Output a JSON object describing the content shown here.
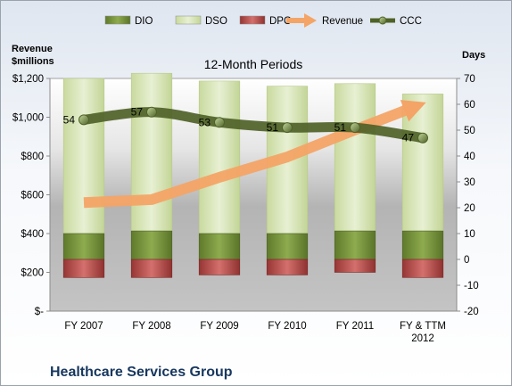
{
  "chart_data": {
    "type": "bar",
    "title": "12-Month Periods",
    "company": "Healthcare Services Group",
    "categories": [
      [
        "FY 2007"
      ],
      [
        "FY 2008"
      ],
      [
        "FY 2009"
      ],
      [
        "FY 2010"
      ],
      [
        "FY 2011"
      ],
      [
        "FY & TTM",
        "2012"
      ]
    ],
    "y_left": {
      "label_lines": [
        "Revenue",
        "$millions"
      ],
      "ticks": [
        "$-",
        "$200",
        "$400",
        "$600",
        "$800",
        "$1,000",
        "$1,200"
      ],
      "range": [
        0,
        1200
      ]
    },
    "y_right": {
      "label": "Days",
      "ticks": [
        "-20",
        "-10",
        "0",
        "10",
        "20",
        "30",
        "40",
        "50",
        "60",
        "70"
      ],
      "range": [
        -20,
        70
      ]
    },
    "legend": {
      "position": "top",
      "items": [
        "DIO",
        "DSO",
        "DPO",
        "Revenue",
        "CCC"
      ]
    },
    "series": [
      {
        "name": "DIO",
        "type": "stacked-bar",
        "axis": "right",
        "values": [
          10,
          11,
          10,
          10,
          11,
          11
        ],
        "color": "#77933c"
      },
      {
        "name": "DSO",
        "type": "stacked-bar",
        "axis": "right",
        "values": [
          60,
          61,
          59,
          57,
          57,
          53
        ],
        "color": "#d7e4bd"
      },
      {
        "name": "DPO",
        "type": "bar-below-zero",
        "axis": "right",
        "values": [
          -7,
          -7,
          -6,
          -6,
          -5,
          -7
        ],
        "color": "#c0504d"
      },
      {
        "name": "Revenue",
        "type": "line",
        "axis": "left",
        "values": [
          560,
          575,
          690,
          795,
          935,
          1070
        ],
        "color": "#f79646"
      },
      {
        "name": "CCC",
        "type": "line",
        "axis": "right",
        "values": [
          54,
          57,
          53,
          51,
          51,
          47
        ],
        "labels": [
          "54",
          "57",
          "53",
          "51",
          "51",
          "47"
        ],
        "color": "#4f6228"
      }
    ]
  }
}
